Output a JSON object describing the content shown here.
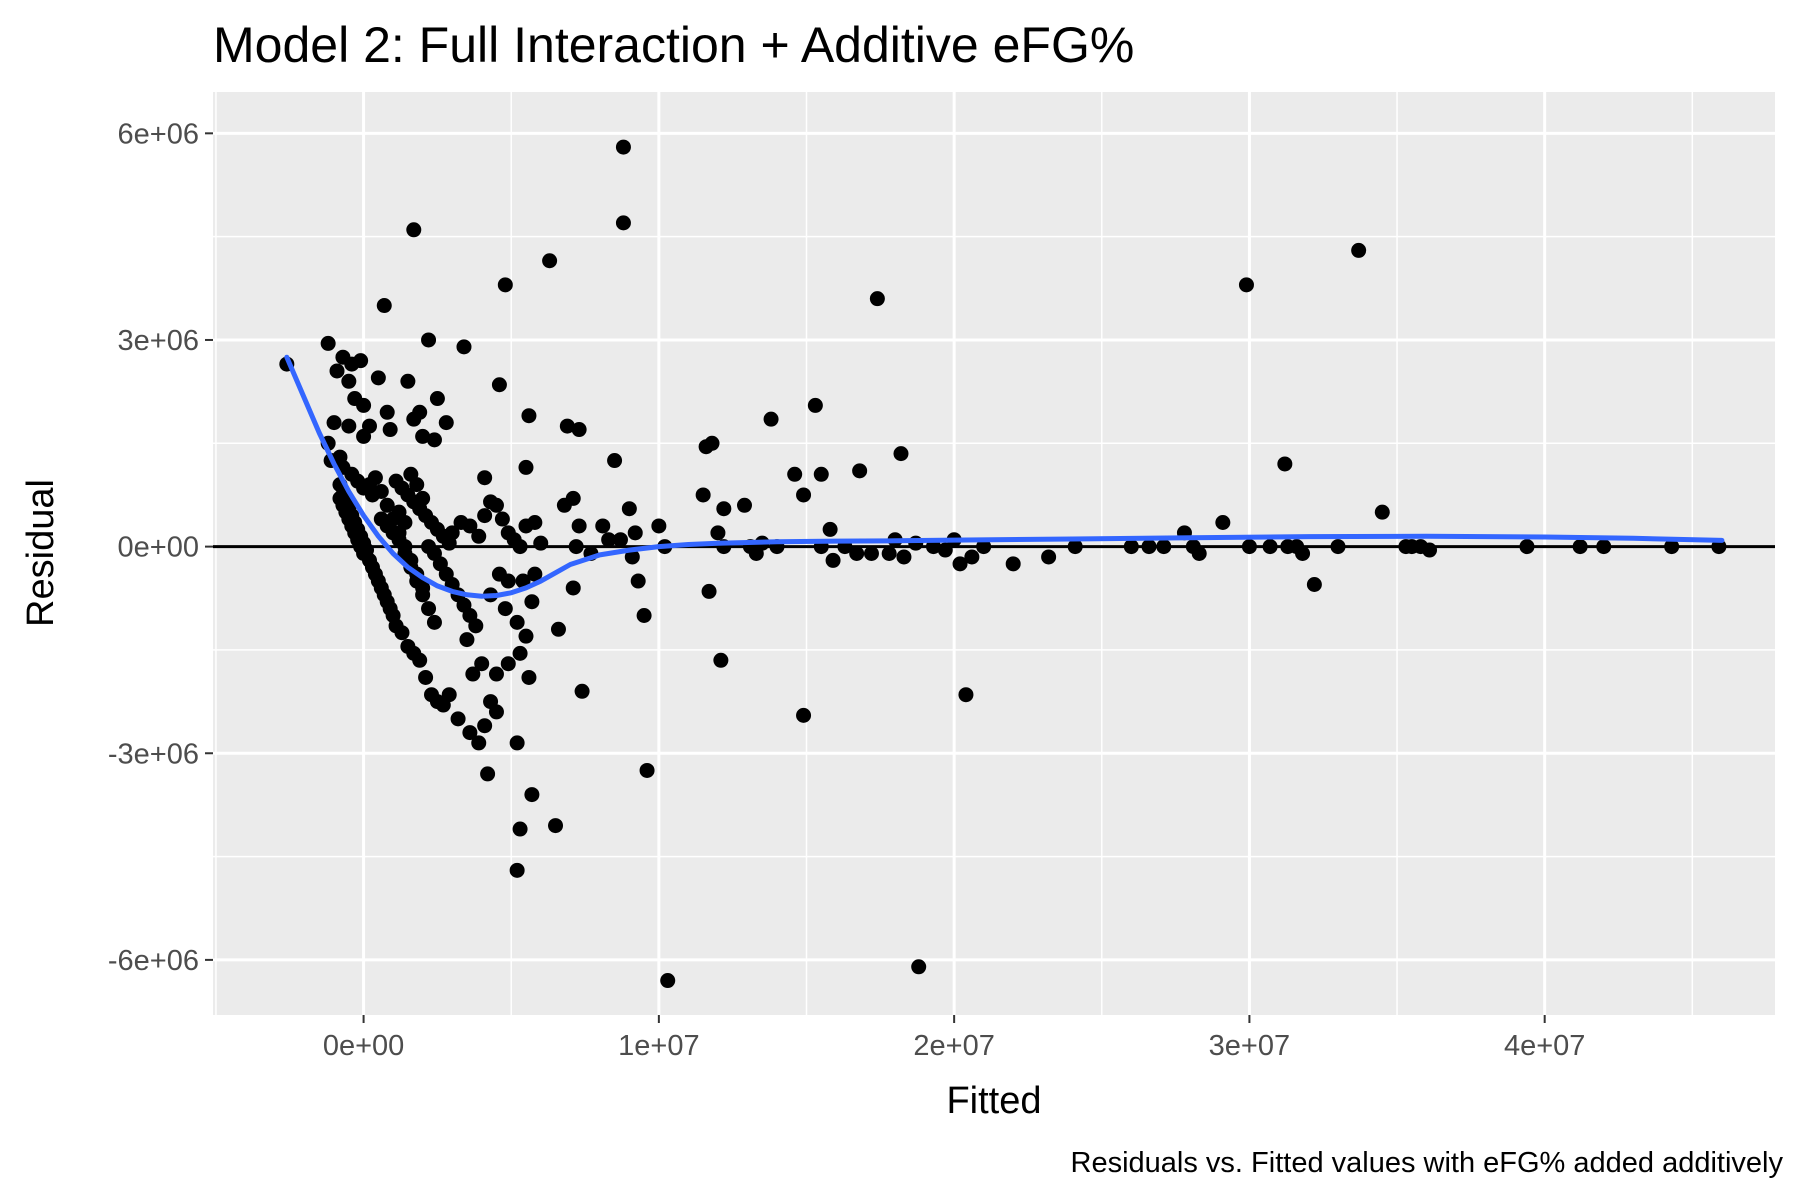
{
  "chart_data": {
    "type": "scatter",
    "title": "Model 2: Full Interaction + Additive eFG%",
    "caption": "Residuals vs. Fitted values with eFG% added additively",
    "xlabel": "Fitted",
    "ylabel": "Residual",
    "xlim": [
      -5100000,
      47800000
    ],
    "ylim": [
      -6800000,
      6600000
    ],
    "x_ticks": [
      0,
      10000000,
      20000000,
      30000000,
      40000000
    ],
    "x_tick_labels": [
      "0e+00",
      "1e+07",
      "2e+07",
      "3e+07",
      "4e+07"
    ],
    "y_ticks": [
      -6000000,
      -3000000,
      0,
      3000000,
      6000000
    ],
    "y_tick_labels": [
      "-6e+06",
      "-3e+06",
      "0e+00",
      "3e+06",
      "6e+06"
    ],
    "grid": true,
    "reference_line_y": 0,
    "colors": {
      "panel": "#ebebeb",
      "grid": "#ffffff",
      "points": "#000000",
      "smooth": "#3366ff",
      "reference": "#000000"
    },
    "points": [
      [
        -2600000,
        2650000
      ],
      [
        -1200000,
        2950000
      ],
      [
        -700000,
        2750000
      ],
      [
        -400000,
        2650000
      ],
      [
        -100000,
        2700000
      ],
      [
        -900000,
        2550000
      ],
      [
        -500000,
        2400000
      ],
      [
        -300000,
        2150000
      ],
      [
        0,
        2050000
      ],
      [
        500000,
        2450000
      ],
      [
        700000,
        3500000
      ],
      [
        800000,
        1950000
      ],
      [
        900000,
        1700000
      ],
      [
        -1000000,
        1800000
      ],
      [
        -500000,
        1750000
      ],
      [
        0,
        1600000
      ],
      [
        200000,
        1750000
      ],
      [
        -1200000,
        1500000
      ],
      [
        -800000,
        1300000
      ],
      [
        -1100000,
        1250000
      ],
      [
        -700000,
        1150000
      ],
      [
        -400000,
        1050000
      ],
      [
        -200000,
        950000
      ],
      [
        0,
        850000
      ],
      [
        300000,
        750000
      ],
      [
        -800000,
        900000
      ],
      [
        -700000,
        750000
      ],
      [
        -600000,
        650000
      ],
      [
        -500000,
        550000
      ],
      [
        -400000,
        450000
      ],
      [
        -300000,
        350000
      ],
      [
        -200000,
        250000
      ],
      [
        -100000,
        150000
      ],
      [
        0,
        50000
      ],
      [
        100000,
        -50000
      ],
      [
        -800000,
        700000
      ],
      [
        -700000,
        600000
      ],
      [
        -600000,
        500000
      ],
      [
        -500000,
        400000
      ],
      [
        -400000,
        300000
      ],
      [
        -300000,
        200000
      ],
      [
        -200000,
        100000
      ],
      [
        -100000,
        0
      ],
      [
        0,
        -100000
      ],
      [
        200000,
        -200000
      ],
      [
        300000,
        -300000
      ],
      [
        400000,
        -400000
      ],
      [
        500000,
        -500000
      ],
      [
        600000,
        -600000
      ],
      [
        700000,
        -700000
      ],
      [
        800000,
        -800000
      ],
      [
        900000,
        -900000
      ],
      [
        1000000,
        -1000000
      ],
      [
        1100000,
        -1150000
      ],
      [
        1300000,
        -1250000
      ],
      [
        1500000,
        -1450000
      ],
      [
        1700000,
        -1550000
      ],
      [
        1900000,
        -1650000
      ],
      [
        2100000,
        -1900000
      ],
      [
        2300000,
        -2150000
      ],
      [
        2500000,
        -2250000
      ],
      [
        2700000,
        -2300000
      ],
      [
        2900000,
        -2150000
      ],
      [
        3200000,
        -2500000
      ],
      [
        3600000,
        -2700000
      ],
      [
        3900000,
        -2850000
      ],
      [
        4100000,
        -2600000
      ],
      [
        4300000,
        -2250000
      ],
      [
        4500000,
        -2400000
      ],
      [
        4200000,
        -3300000
      ],
      [
        5200000,
        -2850000
      ],
      [
        5300000,
        -4100000
      ],
      [
        5700000,
        -3600000
      ],
      [
        6500000,
        -4050000
      ],
      [
        5200000,
        -4700000
      ],
      [
        200000,
        900000
      ],
      [
        400000,
        1000000
      ],
      [
        600000,
        800000
      ],
      [
        800000,
        600000
      ],
      [
        1000000,
        400000
      ],
      [
        1200000,
        200000
      ],
      [
        1400000,
        0
      ],
      [
        1600000,
        -200000
      ],
      [
        1800000,
        -400000
      ],
      [
        2000000,
        -600000
      ],
      [
        600000,
        400000
      ],
      [
        800000,
        300000
      ],
      [
        1000000,
        200000
      ],
      [
        1200000,
        100000
      ],
      [
        1400000,
        -100000
      ],
      [
        1600000,
        -300000
      ],
      [
        1800000,
        -500000
      ],
      [
        2000000,
        -700000
      ],
      [
        2200000,
        -900000
      ],
      [
        2400000,
        -1100000
      ],
      [
        1100000,
        950000
      ],
      [
        1300000,
        850000
      ],
      [
        1500000,
        750000
      ],
      [
        1700000,
        650000
      ],
      [
        1900000,
        550000
      ],
      [
        2100000,
        450000
      ],
      [
        2300000,
        350000
      ],
      [
        2500000,
        250000
      ],
      [
        2700000,
        150000
      ],
      [
        2900000,
        50000
      ],
      [
        1600000,
        1050000
      ],
      [
        1800000,
        900000
      ],
      [
        2000000,
        700000
      ],
      [
        1500000,
        2400000
      ],
      [
        1700000,
        1850000
      ],
      [
        1900000,
        1950000
      ],
      [
        2000000,
        1600000
      ],
      [
        2200000,
        3000000
      ],
      [
        2500000,
        2150000
      ],
      [
        2400000,
        1550000
      ],
      [
        2800000,
        1800000
      ],
      [
        3400000,
        2900000
      ],
      [
        1700000,
        4600000
      ],
      [
        1200000,
        500000
      ],
      [
        1400000,
        350000
      ],
      [
        2200000,
        0
      ],
      [
        2400000,
        -100000
      ],
      [
        2600000,
        -250000
      ],
      [
        2800000,
        -400000
      ],
      [
        3000000,
        -550000
      ],
      [
        3200000,
        -700000
      ],
      [
        3400000,
        -850000
      ],
      [
        3600000,
        -1000000
      ],
      [
        3800000,
        -1150000
      ],
      [
        3500000,
        -1350000
      ],
      [
        3700000,
        -1850000
      ],
      [
        4000000,
        -1700000
      ],
      [
        4500000,
        -1850000
      ],
      [
        4900000,
        -1700000
      ],
      [
        5300000,
        -1550000
      ],
      [
        5600000,
        -1900000
      ],
      [
        5500000,
        -1300000
      ],
      [
        5700000,
        -800000
      ],
      [
        5400000,
        -500000
      ],
      [
        5800000,
        -400000
      ],
      [
        4600000,
        -400000
      ],
      [
        4900000,
        -500000
      ],
      [
        4300000,
        -700000
      ],
      [
        4800000,
        -900000
      ],
      [
        5200000,
        -1100000
      ],
      [
        3000000,
        200000
      ],
      [
        3300000,
        350000
      ],
      [
        3600000,
        300000
      ],
      [
        3900000,
        150000
      ],
      [
        4100000,
        450000
      ],
      [
        4300000,
        650000
      ],
      [
        4500000,
        600000
      ],
      [
        4700000,
        400000
      ],
      [
        4900000,
        200000
      ],
      [
        5100000,
        100000
      ],
      [
        5300000,
        0
      ],
      [
        5500000,
        300000
      ],
      [
        5800000,
        350000
      ],
      [
        6000000,
        50000
      ],
      [
        4100000,
        1000000
      ],
      [
        4600000,
        2350000
      ],
      [
        4800000,
        3800000
      ],
      [
        5600000,
        1900000
      ],
      [
        5500000,
        1150000
      ],
      [
        6300000,
        4150000
      ],
      [
        6900000,
        1750000
      ],
      [
        7300000,
        1700000
      ],
      [
        6800000,
        600000
      ],
      [
        7100000,
        700000
      ],
      [
        7300000,
        300000
      ],
      [
        7100000,
        -600000
      ],
      [
        6600000,
        -1200000
      ],
      [
        7400000,
        -2100000
      ],
      [
        7200000,
        0
      ],
      [
        7700000,
        -100000
      ],
      [
        8100000,
        300000
      ],
      [
        8300000,
        100000
      ],
      [
        8500000,
        1250000
      ],
      [
        8800000,
        4700000
      ],
      [
        8800000,
        5800000
      ],
      [
        9000000,
        550000
      ],
      [
        9200000,
        200000
      ],
      [
        9300000,
        -500000
      ],
      [
        9500000,
        -1000000
      ],
      [
        9600000,
        -3250000
      ],
      [
        10000000,
        300000
      ],
      [
        10200000,
        0
      ],
      [
        9100000,
        -150000
      ],
      [
        8700000,
        100000
      ],
      [
        10300000,
        -6300000
      ],
      [
        11500000,
        750000
      ],
      [
        11600000,
        1450000
      ],
      [
        11800000,
        1500000
      ],
      [
        11700000,
        -650000
      ],
      [
        12000000,
        200000
      ],
      [
        12100000,
        -1650000
      ],
      [
        12200000,
        550000
      ],
      [
        12200000,
        0
      ],
      [
        12900000,
        600000
      ],
      [
        13100000,
        0
      ],
      [
        13300000,
        -100000
      ],
      [
        13500000,
        50000
      ],
      [
        13800000,
        1850000
      ],
      [
        14000000,
        0
      ],
      [
        14600000,
        1050000
      ],
      [
        14900000,
        750000
      ],
      [
        14900000,
        -2450000
      ],
      [
        15300000,
        2050000
      ],
      [
        15500000,
        1050000
      ],
      [
        15500000,
        0
      ],
      [
        15800000,
        250000
      ],
      [
        15900000,
        -200000
      ],
      [
        16300000,
        0
      ],
      [
        16700000,
        -100000
      ],
      [
        16800000,
        1100000
      ],
      [
        17200000,
        -100000
      ],
      [
        17400000,
        3600000
      ],
      [
        17800000,
        -100000
      ],
      [
        18000000,
        100000
      ],
      [
        18200000,
        1350000
      ],
      [
        18300000,
        -150000
      ],
      [
        18700000,
        50000
      ],
      [
        18800000,
        -6100000
      ],
      [
        19300000,
        0
      ],
      [
        19700000,
        -50000
      ],
      [
        20000000,
        100000
      ],
      [
        20200000,
        -250000
      ],
      [
        20400000,
        -2150000
      ],
      [
        20600000,
        -150000
      ],
      [
        21000000,
        0
      ],
      [
        22000000,
        -250000
      ],
      [
        23200000,
        -150000
      ],
      [
        24100000,
        0
      ],
      [
        26000000,
        0
      ],
      [
        26600000,
        0
      ],
      [
        27100000,
        0
      ],
      [
        27800000,
        200000
      ],
      [
        28100000,
        0
      ],
      [
        28300000,
        -100000
      ],
      [
        29100000,
        350000
      ],
      [
        29900000,
        3800000
      ],
      [
        30000000,
        0
      ],
      [
        30700000,
        0
      ],
      [
        31200000,
        1200000
      ],
      [
        31300000,
        0
      ],
      [
        31600000,
        0
      ],
      [
        31800000,
        -100000
      ],
      [
        32200000,
        -550000
      ],
      [
        33000000,
        0
      ],
      [
        33700000,
        4300000
      ],
      [
        34500000,
        500000
      ],
      [
        35300000,
        0
      ],
      [
        35500000,
        0
      ],
      [
        35800000,
        0
      ],
      [
        36100000,
        -50000
      ],
      [
        39400000,
        0
      ],
      [
        41200000,
        0
      ],
      [
        42000000,
        0
      ],
      [
        44300000,
        0
      ],
      [
        45900000,
        0
      ]
    ],
    "smooth_line": [
      [
        -2600000,
        2750000
      ],
      [
        -2000000,
        2150000
      ],
      [
        -1500000,
        1650000
      ],
      [
        -1000000,
        1200000
      ],
      [
        -500000,
        800000
      ],
      [
        0,
        450000
      ],
      [
        500000,
        150000
      ],
      [
        1000000,
        -100000
      ],
      [
        1500000,
        -300000
      ],
      [
        2000000,
        -450000
      ],
      [
        2500000,
        -570000
      ],
      [
        3000000,
        -650000
      ],
      [
        3500000,
        -700000
      ],
      [
        4000000,
        -720000
      ],
      [
        4500000,
        -710000
      ],
      [
        5000000,
        -670000
      ],
      [
        5500000,
        -600000
      ],
      [
        6000000,
        -500000
      ],
      [
        6500000,
        -380000
      ],
      [
        7000000,
        -260000
      ],
      [
        8000000,
        -120000
      ],
      [
        9000000,
        -50000
      ],
      [
        10000000,
        0
      ],
      [
        11000000,
        30000
      ],
      [
        12000000,
        50000
      ],
      [
        14000000,
        70000
      ],
      [
        16000000,
        80000
      ],
      [
        18000000,
        85000
      ],
      [
        20000000,
        95000
      ],
      [
        24000000,
        110000
      ],
      [
        28000000,
        130000
      ],
      [
        32000000,
        145000
      ],
      [
        36000000,
        150000
      ],
      [
        40000000,
        140000
      ],
      [
        43000000,
        120000
      ],
      [
        46000000,
        90000
      ]
    ]
  }
}
